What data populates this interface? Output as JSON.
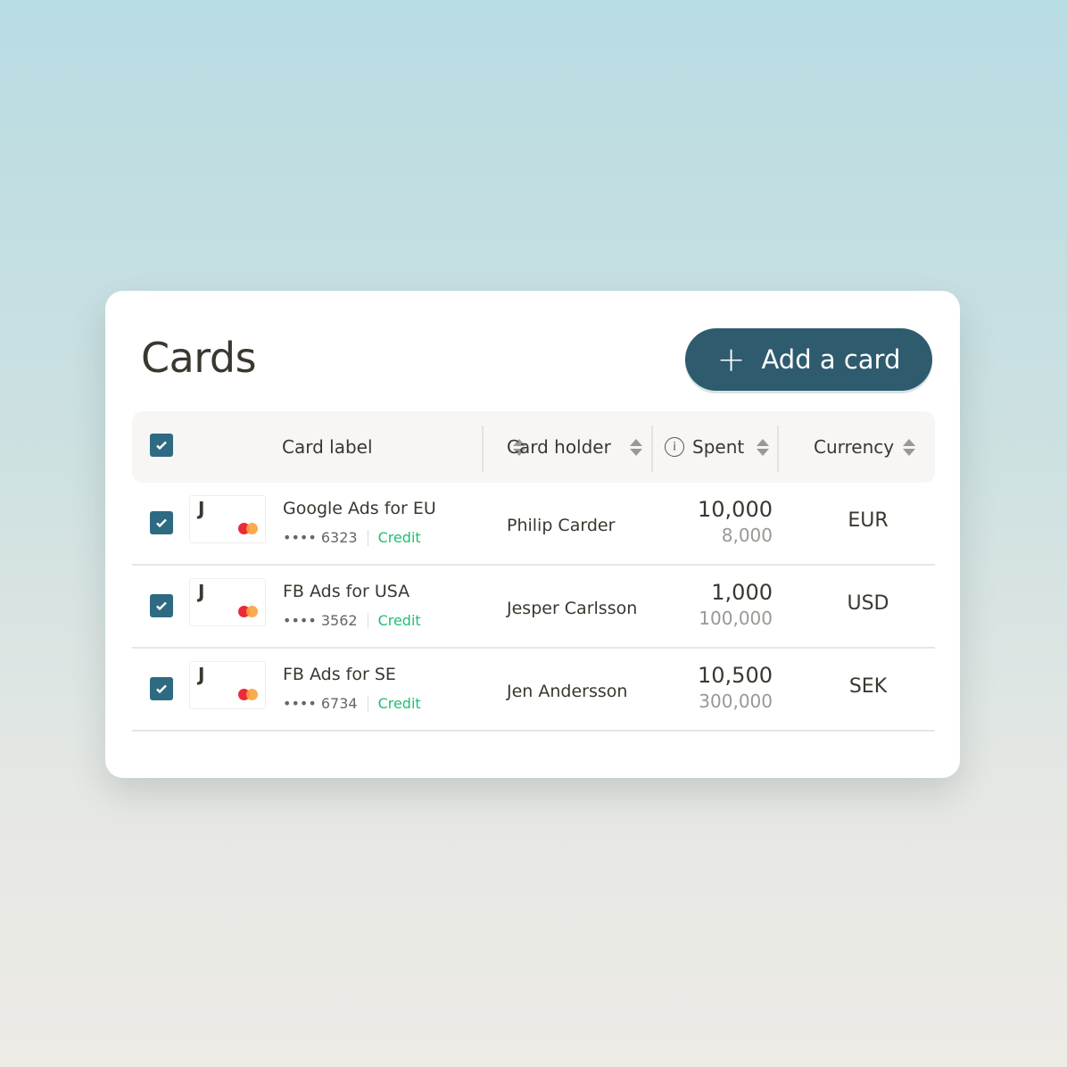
{
  "title": "Cards",
  "add_button": {
    "label": "Add a card",
    "icon": "plus-icon"
  },
  "columns": {
    "card_label": "Card label",
    "card_holder": "Card holder",
    "spent": "Spent",
    "currency": "Currency"
  },
  "colors": {
    "primary": "#2e5b6e",
    "credit": "#1fbf72",
    "mc_red": "#eb001b",
    "mc_orange": "#f79e1b"
  },
  "rows": [
    {
      "logo": "J",
      "label": "Google Ads for EU",
      "masked": "•••• 6323",
      "type": "Credit",
      "holder": "Philip Carder",
      "spent": "10,000",
      "limit": "8,000",
      "currency": "EUR",
      "checked": true
    },
    {
      "logo": "J",
      "label": "FB Ads for USA",
      "masked": "•••• 3562",
      "type": "Credit",
      "holder": "Jesper Carlsson",
      "spent": "1,000",
      "limit": "100,000",
      "currency": "USD",
      "checked": true
    },
    {
      "logo": "J",
      "label": "FB Ads for SE",
      "masked": "•••• 6734",
      "type": "Credit",
      "holder": "Jen Andersson",
      "spent": "10,500",
      "limit": "300,000",
      "currency": "SEK",
      "checked": true
    }
  ]
}
